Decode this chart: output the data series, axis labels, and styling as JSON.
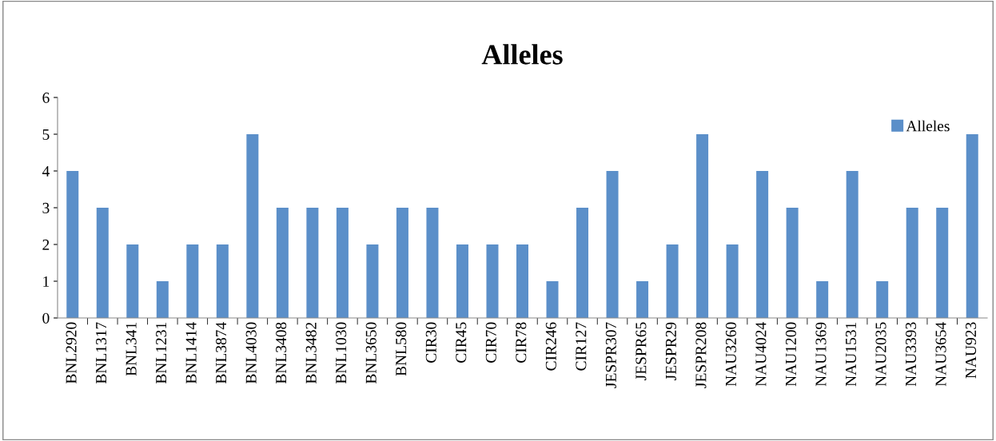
{
  "chart_data": {
    "type": "bar",
    "title": "Alleles",
    "categories": [
      "BNL2920",
      "BNL1317",
      "BNL341",
      "BNL1231",
      "BNL1414",
      "BNL3874",
      "BNL4030",
      "BNL3408",
      "BNL3482",
      "BNL1030",
      "BNL3650",
      "BNL580",
      "CIR30",
      "CIR45",
      "CIR70",
      "CIR78",
      "CIR246",
      "CIR127",
      "JESPR307",
      "JESPR65",
      "JESPR29",
      "JESPR208",
      "NAU3260",
      "NAU4024",
      "NAU1200",
      "NAU1369",
      "NAU1531",
      "NAU2035",
      "NAU3393",
      "NAU3654",
      "NAU923"
    ],
    "series": [
      {
        "name": "Alleles",
        "color": "#5b8fc9",
        "values": [
          4,
          3,
          2,
          1,
          2,
          2,
          5,
          3,
          3,
          3,
          2,
          3,
          3,
          2,
          2,
          2,
          1,
          3,
          4,
          1,
          2,
          5,
          2,
          4,
          3,
          1,
          4,
          1,
          3,
          3,
          5
        ]
      }
    ],
    "ylim": [
      0,
      6
    ],
    "yticks": [
      0,
      1,
      2,
      3,
      4,
      5,
      6
    ],
    "grid": false,
    "legend": "top right"
  }
}
